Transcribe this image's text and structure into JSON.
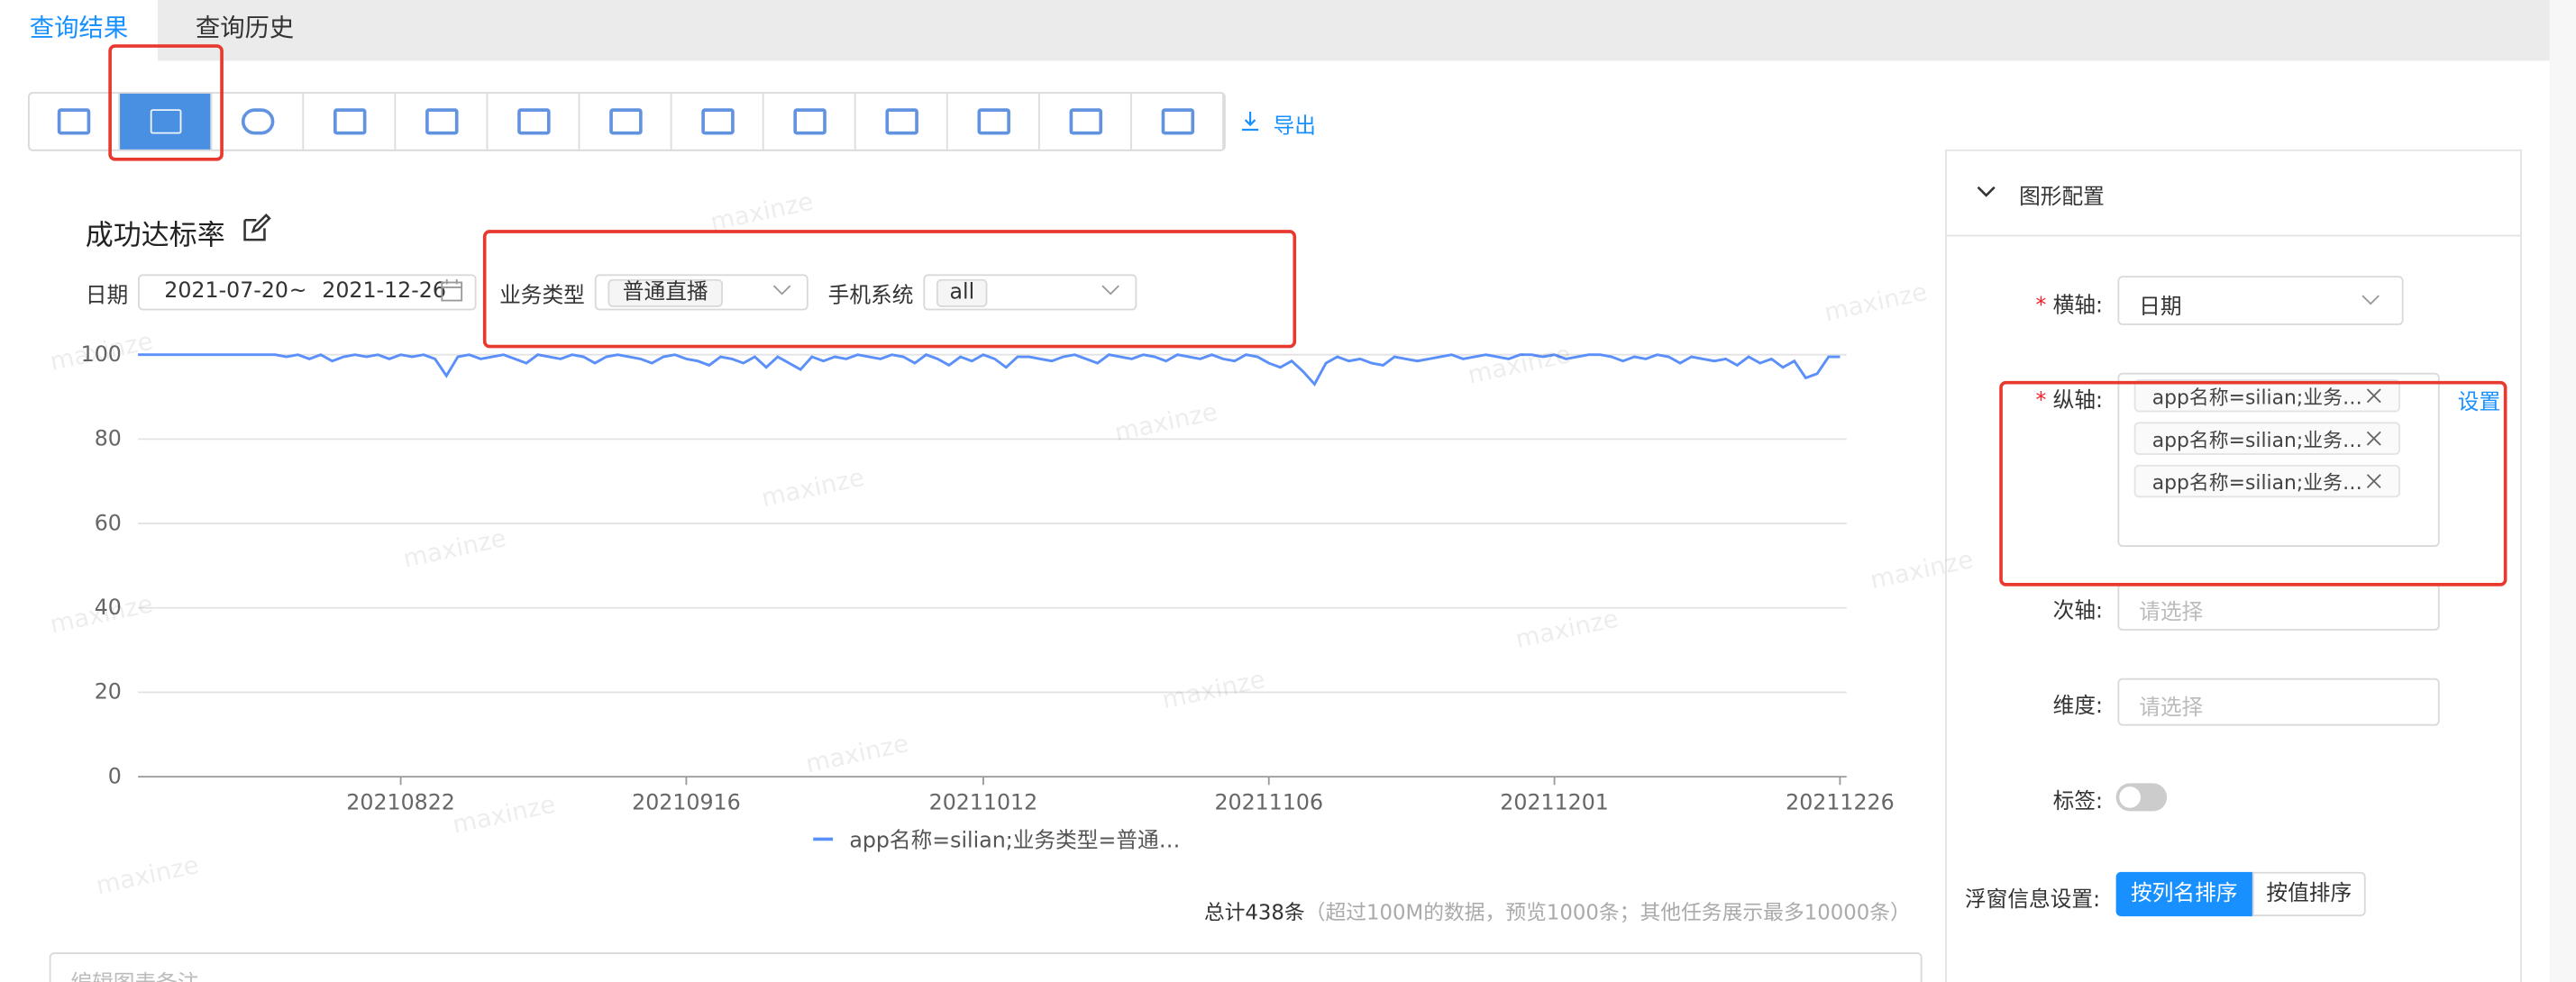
{
  "tabs": [
    "查询结果",
    "查询历史"
  ],
  "toolbar": {
    "export": "导出"
  },
  "chart_panel": {
    "title": "成功达标率",
    "filters": {
      "date_label": "日期",
      "date_start": "2021-07-20",
      "date_sep": "~",
      "date_end": "2021-12-26",
      "biz_label": "业务类型",
      "biz_value": "普通直播",
      "os_label": "手机系统",
      "os_value": "all"
    }
  },
  "watermark": "maxinze",
  "chart_data": {
    "type": "line",
    "categories": [
      null,
      null,
      null,
      null,
      null,
      null,
      null,
      null,
      null,
      null,
      null,
      null,
      null,
      null,
      null,
      null,
      null,
      null,
      null,
      null,
      null,
      null,
      null,
      "20210822",
      null,
      null,
      null,
      null,
      null,
      null,
      null,
      null,
      null,
      null,
      null,
      null,
      null,
      null,
      null,
      null,
      null,
      null,
      null,
      null,
      null,
      null,
      null,
      null,
      "20210916",
      null,
      null,
      null,
      null,
      null,
      null,
      null,
      null,
      null,
      null,
      null,
      null,
      null,
      null,
      null,
      null,
      null,
      null,
      null,
      null,
      null,
      null,
      null,
      null,
      null,
      "20211012",
      null,
      null,
      null,
      null,
      null,
      null,
      null,
      null,
      null,
      null,
      null,
      null,
      null,
      null,
      null,
      null,
      null,
      null,
      null,
      null,
      null,
      null,
      null,
      null,
      "20211106",
      null,
      null,
      null,
      null,
      null,
      null,
      null,
      null,
      null,
      null,
      null,
      null,
      null,
      null,
      null,
      null,
      null,
      null,
      null,
      null,
      null,
      null,
      null,
      null,
      "20211201",
      null,
      null,
      null,
      null,
      null,
      null,
      null,
      null,
      null,
      null,
      null,
      null,
      null,
      null,
      null,
      null,
      null,
      null,
      null,
      null,
      null,
      null,
      null,
      null,
      "20211226"
    ],
    "series": [
      {
        "name": "app名称=silian;业务类型=普通…",
        "color": "#5b8ff9",
        "values": [
          100,
          100,
          100,
          100,
          100,
          100,
          100,
          100,
          100,
          100,
          100,
          100,
          100,
          99.5,
          100,
          99,
          100,
          98.5,
          99.5,
          100,
          99.5,
          100,
          99,
          100,
          99.5,
          100,
          99,
          95,
          99.5,
          100,
          99,
          99.5,
          100,
          99,
          98,
          100,
          99.5,
          99,
          100,
          99.5,
          98,
          99.5,
          100,
          99.5,
          99,
          98,
          99.5,
          100,
          99,
          98.5,
          97.5,
          99.5,
          99,
          98,
          99.5,
          97,
          99.5,
          98,
          96.5,
          99.5,
          98.5,
          99.5,
          99,
          100,
          99.5,
          99,
          100,
          99.5,
          98,
          100,
          99,
          97.5,
          99.5,
          98.5,
          100,
          99,
          97,
          99.5,
          99.5,
          99,
          98.5,
          99.5,
          100,
          99,
          98,
          100,
          99.5,
          99,
          100,
          99.5,
          98.5,
          100,
          99.5,
          99,
          100,
          99,
          98.5,
          100,
          99.5,
          98,
          97,
          98.5,
          96,
          93,
          98,
          99.5,
          98.5,
          99,
          98,
          97.5,
          99.5,
          99,
          98.5,
          99,
          99.5,
          100,
          99,
          99.5,
          100,
          99.5,
          99,
          100,
          100,
          99.5,
          100,
          99,
          99.5,
          100,
          100,
          99.5,
          98.5,
          99.5,
          99,
          100,
          99.5,
          98,
          99.5,
          99,
          98.5,
          99,
          97.5,
          99.5,
          98,
          99,
          97,
          98.5,
          94.5,
          95.5,
          99.5,
          99.5
        ]
      }
    ],
    "ylim": [
      0,
      100
    ],
    "yticks": [
      0,
      20,
      40,
      60,
      80,
      100
    ],
    "grid": true
  },
  "summary": {
    "total": "总计438条",
    "note": "（超过100M的数据，预览1000条；其他任务展示最多10000条）"
  },
  "remark_placeholder": "编辑图表备注",
  "config": {
    "title": "图形配置",
    "required_mark": "*",
    "x_axis_label": "横轴:",
    "x_axis_value": "日期",
    "y_axis_label": "纵轴:",
    "y_axis_tags": [
      "app名称=silian;业务…",
      "app名称=silian;业务…",
      "app名称=silian;业务…"
    ],
    "set": "设置",
    "y2_label": "次轴:",
    "y2_placeholder": "请选择",
    "dim_label": "维度:",
    "dim_placeholder": "请选择",
    "tag_label": "标签:",
    "tooltip_label": "浮窗信息设置:",
    "sort_buttons": [
      "按列名排序",
      "按值排序"
    ]
  }
}
